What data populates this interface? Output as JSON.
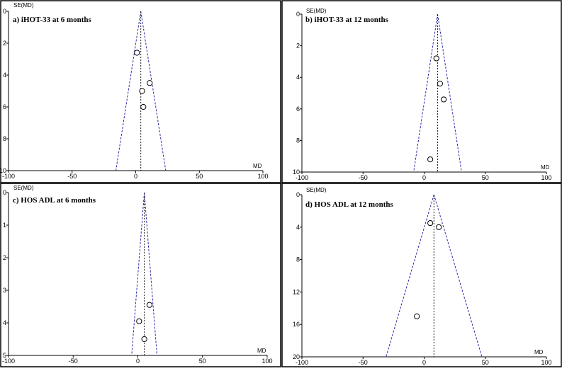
{
  "chart_data": [
    {
      "type": "scatter",
      "title": "a) iHOT-33 at 6 months",
      "xlabel": "MD",
      "ylabel": "SE(MD)",
      "xlim": [
        -100,
        100
      ],
      "ylim": [
        10,
        0
      ],
      "y_reversed": true,
      "xticks": [
        -100,
        -50,
        0,
        50,
        100
      ],
      "xtick_labels": [
        "-100",
        "-50",
        "0",
        "50",
        "100"
      ],
      "yticks": [
        0,
        2,
        4,
        6,
        8,
        10
      ],
      "ytick_labels": [
        "0",
        "2",
        "4",
        "6",
        "8",
        "10"
      ],
      "pooled_md": 4,
      "funnel_limits": "95% pseudo-confidence limits",
      "colors": {
        "funnel": "#2a2aa8",
        "points": "#000000"
      },
      "grid": false,
      "points": [
        {
          "x": 1,
          "y": 2.6
        },
        {
          "x": 11,
          "y": 4.5
        },
        {
          "x": 5,
          "y": 5.0
        },
        {
          "x": 6,
          "y": 6.0
        }
      ]
    },
    {
      "type": "scatter",
      "title": "b) iHOT-33 at 12 months",
      "xlabel": "MD",
      "ylabel": "SE(MD)",
      "xlim": [
        -100,
        100
      ],
      "ylim": [
        10,
        0
      ],
      "y_reversed": true,
      "xticks": [
        -100,
        -50,
        0,
        50,
        100
      ],
      "xtick_labels": [
        "-100",
        "-50",
        "0",
        "50",
        "100"
      ],
      "yticks": [
        0,
        2,
        4,
        6,
        8,
        10
      ],
      "ytick_labels": [
        "0",
        "2",
        "4",
        "6",
        "8",
        "10"
      ],
      "pooled_md": 11,
      "funnel_limits": "95% pseudo-confidence limits",
      "colors": {
        "funnel": "#2a2aa8",
        "points": "#000000"
      },
      "grid": false,
      "points": [
        {
          "x": 10,
          "y": 2.8
        },
        {
          "x": 13,
          "y": 4.4
        },
        {
          "x": 16,
          "y": 5.4
        },
        {
          "x": 5,
          "y": 9.2
        }
      ]
    },
    {
      "type": "scatter",
      "title": "c) HOS ADL at 6 months",
      "xlabel": "MD",
      "ylabel": "SE(MD)",
      "xlim": [
        -100,
        100
      ],
      "ylim": [
        5,
        0
      ],
      "y_reversed": true,
      "xticks": [
        -100,
        -50,
        0,
        50,
        100
      ],
      "xtick_labels": [
        "-100",
        "-50",
        "0",
        "50",
        "100"
      ],
      "yticks": [
        0,
        1,
        2,
        3,
        4,
        5
      ],
      "ytick_labels": [
        "0",
        "1",
        "2",
        "3",
        "4",
        "5"
      ],
      "pooled_md": 5,
      "funnel_limits": "95% pseudo-confidence limits",
      "colors": {
        "funnel": "#2a2aa8",
        "points": "#000000"
      },
      "grid": false,
      "points": [
        {
          "x": 9,
          "y": 3.45
        },
        {
          "x": 1,
          "y": 3.95
        },
        {
          "x": 5,
          "y": 4.5
        }
      ]
    },
    {
      "type": "scatter",
      "title": "d) HOS ADL at 12 months",
      "xlabel": "MD",
      "ylabel": "SE(MD)",
      "xlim": [
        -100,
        100
      ],
      "ylim": [
        20,
        0
      ],
      "y_reversed": true,
      "xticks": [
        -100,
        -50,
        0,
        50,
        100
      ],
      "xtick_labels": [
        "-100",
        "-50",
        "0",
        "50",
        "100"
      ],
      "yticks": [
        0,
        4,
        8,
        12,
        16,
        20
      ],
      "ytick_labels": [
        "0",
        "4",
        "8",
        "12",
        "16",
        "20"
      ],
      "pooled_md": 8,
      "funnel_limits": "95% pseudo-confidence limits",
      "colors": {
        "funnel": "#2a2aa8",
        "points": "#000000"
      },
      "grid": false,
      "points": [
        {
          "x": 5,
          "y": 3.5
        },
        {
          "x": 12,
          "y": 4.0
        },
        {
          "x": -6,
          "y": 15.0
        }
      ]
    }
  ]
}
